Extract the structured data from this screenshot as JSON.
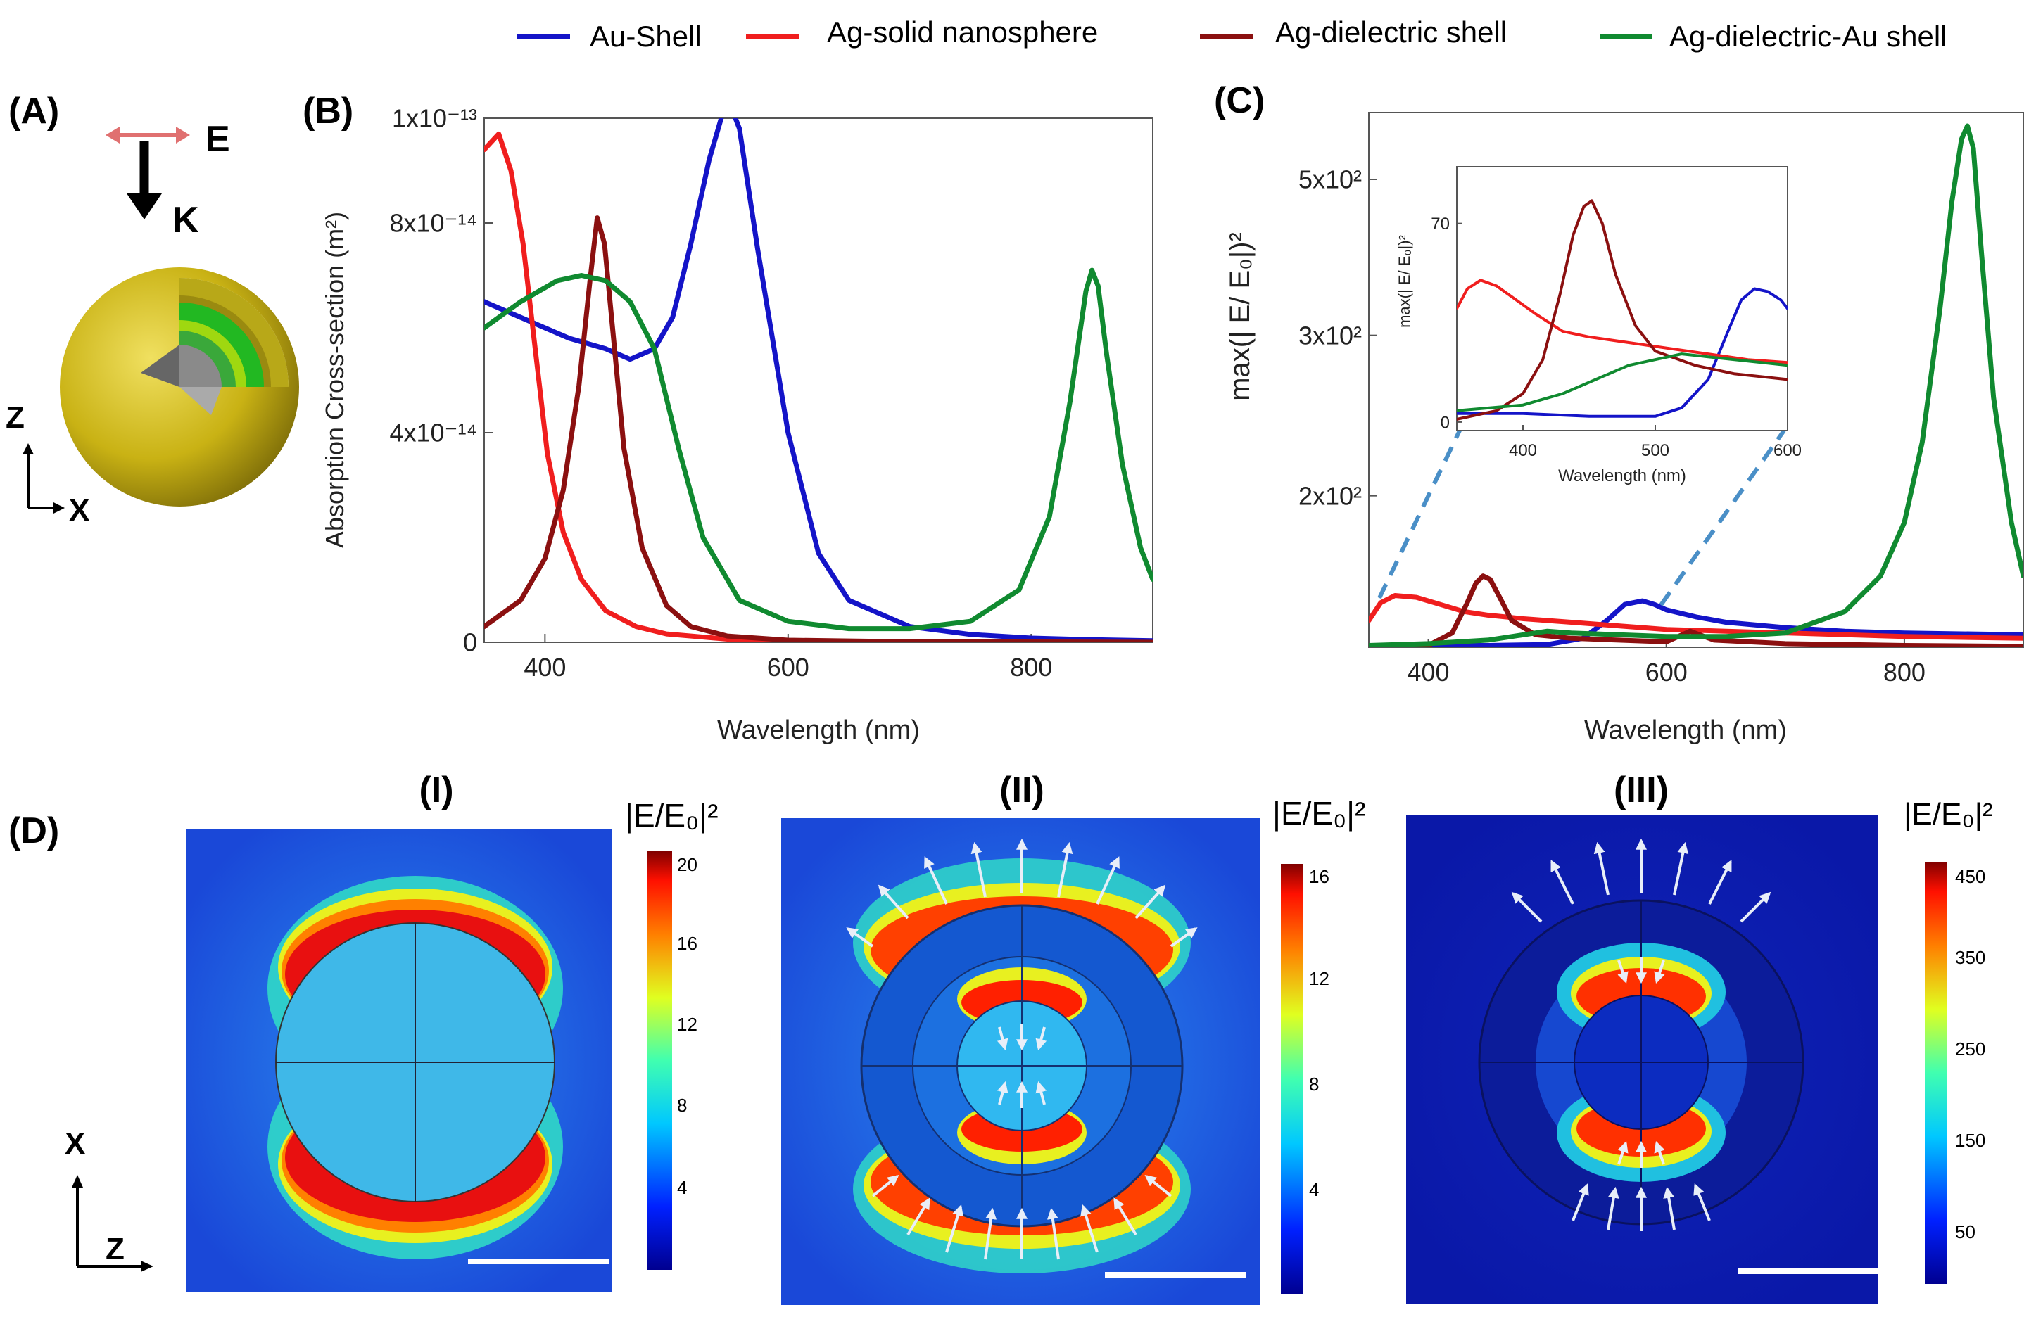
{
  "colors": {
    "au_shell": "#1414c8",
    "ag_solid": "#f01e1e",
    "ag_dielectric": "#8b1010",
    "ag_dielectric_au": "#108a30",
    "dash": "#4a8fc7",
    "gold": "#c9b614",
    "green_layer": "#22b822",
    "core": "#8a8a8a"
  },
  "legend": [
    {
      "name": "Au-Shell",
      "color_key": "au_shell"
    },
    {
      "name": "Ag-solid nanosphere",
      "color_key": "ag_solid"
    },
    {
      "name": "Ag-dielectric shell",
      "color_key": "ag_dielectric"
    },
    {
      "name": "Ag-dielectric-Au shell",
      "color_key": "ag_dielectric_au"
    }
  ],
  "panel_labels": {
    "A": "(A)",
    "B": "(B)",
    "C": "(C)",
    "D": "(D)"
  },
  "panel_a": {
    "field": "E",
    "wavevector": "K",
    "axis_z": "Z",
    "axis_x": "X"
  },
  "panel_d": {
    "axis_x": "X",
    "axis_z": "Z",
    "maps": [
      {
        "title": "(I)",
        "colorbar_title": "|E/E₀|²",
        "ticks": [
          "20",
          "16",
          "12",
          "8",
          "4"
        ]
      },
      {
        "title": "(II)",
        "colorbar_title": "|E/E₀|²",
        "ticks": [
          "16",
          "12",
          "8",
          "4"
        ]
      },
      {
        "title": "(III)",
        "colorbar_title": "|E/E₀|²",
        "ticks": [
          "450",
          "350",
          "250",
          "150",
          "50"
        ]
      }
    ]
  },
  "chart_data": [
    {
      "type": "line",
      "panel": "B",
      "xlabel": "Wavelength (nm)",
      "ylabel": "Absorption Cross-section (m²)",
      "xlim": [
        350,
        900
      ],
      "ylim": [
        0,
        1e-13
      ],
      "xticks": [
        400,
        600,
        800
      ],
      "yticks": [
        {
          "v": 0,
          "label": "0"
        },
        {
          "v": 4e-14,
          "label": "4x10⁻¹⁴"
        },
        {
          "v": 8e-14,
          "label": "8x10⁻¹⁴"
        },
        {
          "v": 1e-13,
          "label": "1x10⁻¹³"
        }
      ],
      "series": [
        {
          "name": "Au-Shell",
          "color_key": "au_shell",
          "x": [
            350,
            380,
            420,
            450,
            470,
            490,
            505,
            520,
            535,
            550,
            560,
            575,
            600,
            625,
            650,
            700,
            750,
            800,
            850,
            900
          ],
          "y": [
            6.5e-14,
            6.2e-14,
            5.8e-14,
            5.6e-14,
            5.4e-14,
            5.6e-14,
            6.2e-14,
            7.6e-14,
            9.2e-14,
            1.04e-13,
            9.8e-14,
            7.5e-14,
            4e-14,
            1.7e-14,
            8e-15,
            3e-15,
            1.5e-15,
            8e-16,
            5e-16,
            3e-16
          ]
        },
        {
          "name": "Ag-solid nanosphere",
          "color_key": "ag_solid",
          "x": [
            350,
            362,
            372,
            382,
            392,
            402,
            415,
            430,
            450,
            475,
            500,
            550,
            600,
            700,
            900
          ],
          "y": [
            9.4e-14,
            9.7e-14,
            9e-14,
            7.6e-14,
            5.6e-14,
            3.6e-14,
            2.1e-14,
            1.2e-14,
            6e-15,
            3e-15,
            1.6e-15,
            6e-16,
            3e-16,
            1e-16,
            0
          ]
        },
        {
          "name": "Ag-dielectric shell",
          "color_key": "ag_dielectric",
          "x": [
            350,
            380,
            400,
            415,
            428,
            437,
            443,
            449,
            456,
            465,
            480,
            500,
            520,
            550,
            600,
            700,
            900
          ],
          "y": [
            3e-15,
            8e-15,
            1.6e-14,
            2.9e-14,
            4.9e-14,
            6.9e-14,
            8.1e-14,
            7.6e-14,
            5.9e-14,
            3.7e-14,
            1.8e-14,
            7e-15,
            3e-15,
            1.2e-15,
            4e-16,
            1e-16,
            0
          ]
        },
        {
          "name": "Ag-dielectric-Au shell",
          "color_key": "ag_dielectric_au",
          "x": [
            350,
            380,
            410,
            430,
            450,
            470,
            490,
            510,
            530,
            560,
            600,
            650,
            700,
            750,
            790,
            815,
            832,
            845,
            850,
            855,
            862,
            875,
            890,
            900
          ],
          "y": [
            6e-14,
            6.5e-14,
            6.9e-14,
            7e-14,
            6.9e-14,
            6.5e-14,
            5.6e-14,
            3.7e-14,
            2e-14,
            8e-15,
            4e-15,
            2.6e-15,
            2.6e-15,
            4e-15,
            1e-14,
            2.4e-14,
            4.6e-14,
            6.7e-14,
            7.1e-14,
            6.8e-14,
            5.5e-14,
            3.4e-14,
            1.8e-14,
            1.2e-14
          ]
        }
      ]
    },
    {
      "type": "line",
      "panel": "C",
      "xlabel": "Wavelength (nm)",
      "ylabel": "max(| E/ E₀|)²",
      "xlim": [
        350,
        900
      ],
      "ylim": [
        0,
        600
      ],
      "xticks": [
        400,
        600,
        800
      ],
      "yticks": [
        {
          "v": 170,
          "label": "2x10²"
        },
        {
          "v": 350,
          "label": "3x10²"
        },
        {
          "v": 525,
          "label": "5x10²"
        }
      ],
      "series": [
        {
          "name": "Au-Shell",
          "color_key": "au_shell",
          "x": [
            350,
            400,
            450,
            500,
            530,
            550,
            565,
            580,
            590,
            600,
            625,
            650,
            700,
            750,
            800,
            900
          ],
          "y": [
            1,
            2,
            2,
            3,
            10,
            30,
            48,
            52,
            48,
            42,
            34,
            28,
            22,
            18,
            16,
            14
          ]
        },
        {
          "name": "Ag-solid nanosphere",
          "color_key": "ag_solid",
          "x": [
            350,
            360,
            372,
            390,
            410,
            430,
            450,
            480,
            520,
            560,
            600,
            650,
            700,
            800,
            900
          ],
          "y": [
            30,
            50,
            58,
            56,
            48,
            40,
            36,
            32,
            28,
            24,
            20,
            18,
            16,
            12,
            10
          ]
        },
        {
          "name": "Ag-dielectric shell",
          "color_key": "ag_dielectric",
          "x": [
            350,
            400,
            420,
            432,
            440,
            446,
            452,
            460,
            470,
            490,
            520,
            560,
            600,
            620,
            640,
            700,
            800,
            900
          ],
          "y": [
            0,
            2,
            16,
            48,
            72,
            80,
            76,
            56,
            30,
            14,
            10,
            8,
            6,
            18,
            8,
            4,
            2,
            1
          ]
        },
        {
          "name": "Ag-dielectric-Au shell",
          "color_key": "ag_dielectric_au",
          "x": [
            350,
            400,
            450,
            480,
            500,
            520,
            560,
            600,
            650,
            700,
            750,
            780,
            800,
            815,
            830,
            840,
            848,
            853,
            858,
            865,
            875,
            890,
            900
          ],
          "y": [
            2,
            4,
            8,
            14,
            18,
            16,
            14,
            12,
            12,
            16,
            40,
            80,
            140,
            230,
            380,
            500,
            570,
            585,
            560,
            440,
            280,
            140,
            80
          ]
        }
      ],
      "inset": {
        "xlabel": "Wavelength (nm)",
        "ylabel": "max(| E/ E₀|)²",
        "xlim": [
          350,
          600
        ],
        "ylim": [
          -3,
          90
        ],
        "xticks": [
          400,
          500,
          600
        ],
        "yticks": [
          0,
          70
        ],
        "series": [
          {
            "name": "Au-Shell",
            "color_key": "au_shell",
            "x": [
              350,
              400,
              450,
              500,
              520,
              540,
              555,
              565,
              575,
              585,
              595,
              600
            ],
            "y": [
              3,
              3,
              2,
              2,
              5,
              15,
              32,
              43,
              47,
              46,
              43,
              40
            ]
          },
          {
            "name": "Ag-solid nanosphere",
            "color_key": "ag_solid",
            "x": [
              350,
              358,
              368,
              380,
              395,
              410,
              430,
              450,
              480,
              510,
              540,
              570,
              600
            ],
            "y": [
              40,
              47,
              50,
              48,
              43,
              38,
              32,
              30,
              28,
              26,
              24,
              22,
              21
            ]
          },
          {
            "name": "Ag-dielectric shell",
            "color_key": "ag_dielectric",
            "x": [
              350,
              380,
              400,
              415,
              428,
              438,
              446,
              452,
              460,
              470,
              485,
              500,
              530,
              560,
              600
            ],
            "y": [
              1,
              4,
              10,
              22,
              45,
              66,
              76,
              78,
              70,
              52,
              34,
              25,
              20,
              17,
              15
            ]
          },
          {
            "name": "Ag-dielectric-Au shell",
            "color_key": "ag_dielectric_au",
            "x": [
              350,
              400,
              430,
              460,
              480,
              500,
              520,
              540,
              560,
              580,
              600
            ],
            "y": [
              4,
              6,
              10,
              16,
              20,
              22,
              24,
              23,
              22,
              21,
              20
            ]
          }
        ]
      }
    }
  ]
}
